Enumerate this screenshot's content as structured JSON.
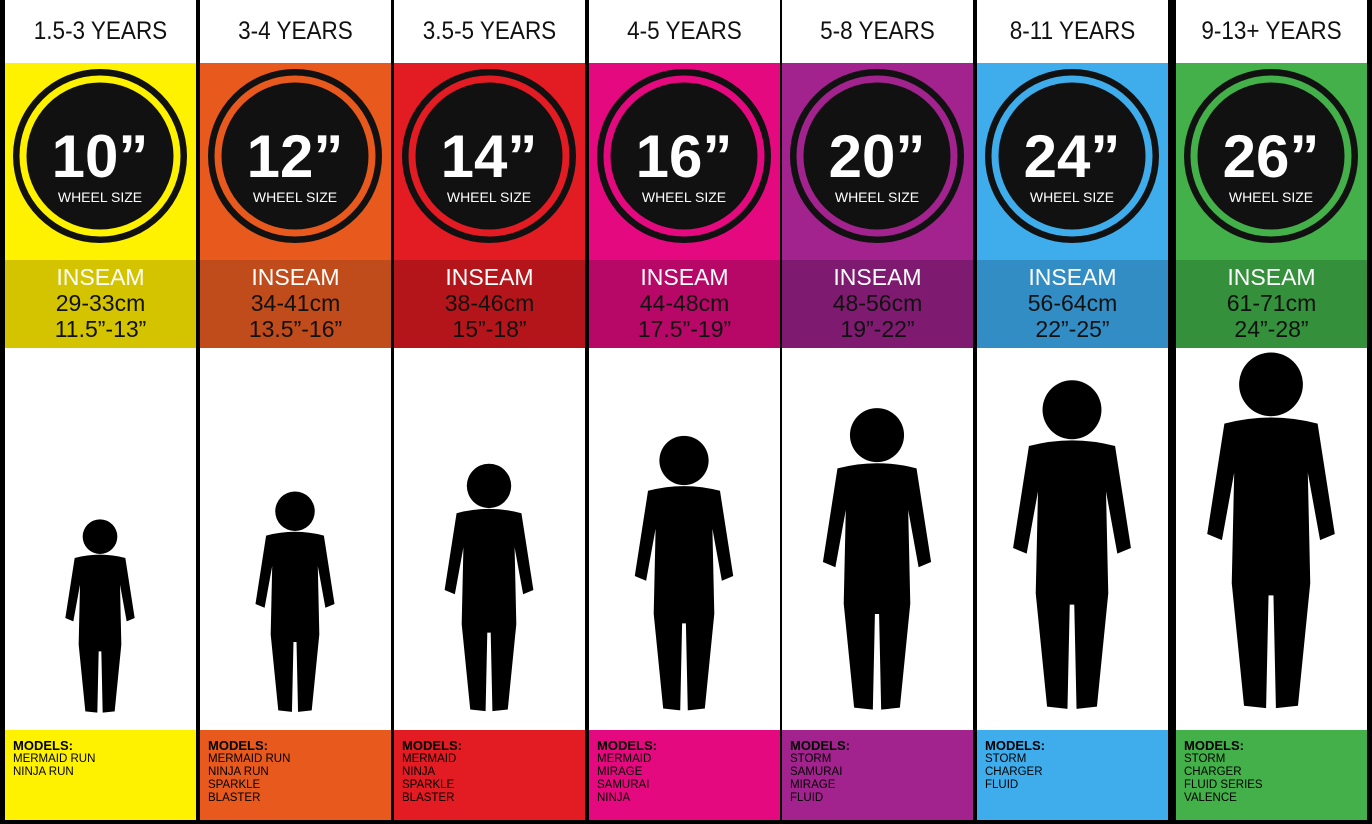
{
  "columns": [
    {
      "age": "1.5-3 YEARS",
      "wheel": "10”",
      "wheel_label": "WHEEL SIZE",
      "inseam_label": "INSEAM",
      "inseam_cm": "29-33cm",
      "inseam_in": "11.5”-13”",
      "models_label": "MODELS:",
      "models": [
        "MERMAID RUN",
        "NINJA RUN"
      ],
      "color": "#fff200",
      "dark": "#d4c400"
    },
    {
      "age": "3-4 YEARS",
      "wheel": "12”",
      "wheel_label": "WHEEL SIZE",
      "inseam_label": "INSEAM",
      "inseam_cm": "34-41cm",
      "inseam_in": "13.5”-16”",
      "models_label": "MODELS:",
      "models": [
        "MERMAID RUN",
        "NINJA RUN",
        "SPARKLE",
        "BLASTER"
      ],
      "color": "#e8591e",
      "dark": "#c04b1b"
    },
    {
      "age": "3.5-5 YEARS",
      "wheel": "14”",
      "wheel_label": "WHEEL SIZE",
      "inseam_label": "INSEAM",
      "inseam_cm": "38-46cm",
      "inseam_in": "15”-18”",
      "models_label": "MODELS:",
      "models": [
        "MERMAID",
        "NINJA",
        "SPARKLE",
        "BLASTER"
      ],
      "color": "#e31b23",
      "dark": "#b3151b"
    },
    {
      "age": "4-5 YEARS",
      "wheel": "16”",
      "wheel_label": "WHEEL SIZE",
      "inseam_label": "INSEAM",
      "inseam_cm": "44-48cm",
      "inseam_in": "17.5”-19”",
      "models_label": "MODELS:",
      "models": [
        "MERMAID",
        "MIRAGE",
        "SAMURAI",
        "NINJA"
      ],
      "color": "#e5097f",
      "dark": "#b70767"
    },
    {
      "age": "5-8 YEARS",
      "wheel": "20”",
      "wheel_label": "WHEEL SIZE",
      "inseam_label": "INSEAM",
      "inseam_cm": "48-56cm",
      "inseam_in": "19”-22”",
      "models_label": "MODELS:",
      "models": [
        "STORM",
        "SAMURAI",
        "MIRAGE",
        "FLUID"
      ],
      "color": "#a3238e",
      "dark": "#7e1b70"
    },
    {
      "age": "8-11 YEARS",
      "wheel": "24”",
      "wheel_label": "WHEEL SIZE",
      "inseam_label": "INSEAM",
      "inseam_cm": "56-64cm",
      "inseam_in": "22”-25”",
      "models_label": "MODELS:",
      "models": [
        "STORM",
        "CHARGER",
        "FLUID"
      ],
      "color": "#3fadec",
      "dark": "#318dc4"
    },
    {
      "age": "9-13+ YEARS",
      "wheel": "26”",
      "wheel_label": "WHEEL SIZE",
      "inseam_label": "INSEAM",
      "inseam_cm": "61-71cm",
      "inseam_in": "24”-28”",
      "models_label": "MODELS:",
      "models": [
        "STORM",
        "CHARGER",
        "FLUID SERIES",
        "VALENCE"
      ],
      "color": "#43b049",
      "dark": "#35903b"
    }
  ]
}
